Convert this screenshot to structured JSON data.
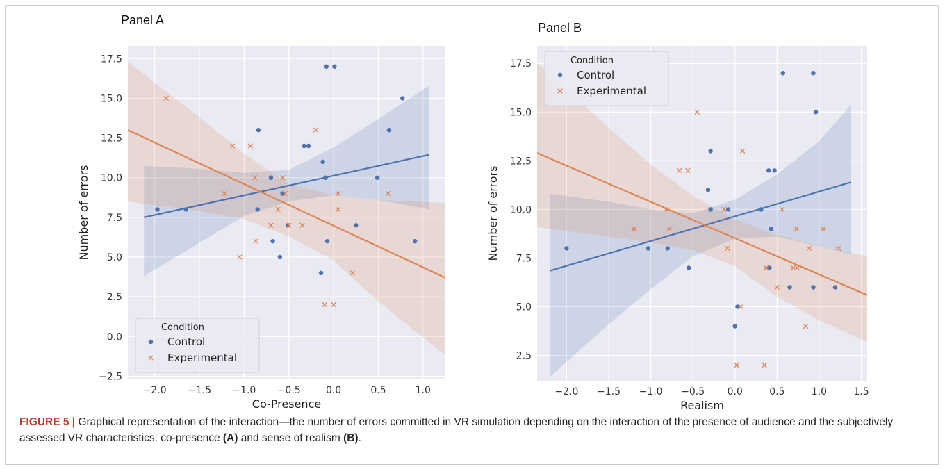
{
  "chart_data": [
    {
      "panel_title": "Panel A",
      "type": "scatter",
      "xlabel": "Co-Presence",
      "ylabel": "Number of errors",
      "xlim": [
        -2.3,
        1.25
      ],
      "ylim": [
        -2.7,
        18.3
      ],
      "xticks": [
        -2.0,
        -1.5,
        -1.0,
        -0.5,
        0.0,
        0.5,
        1.0
      ],
      "xtick_labels": [
        "−2.0",
        "−1.5",
        "−1.0",
        "−0.5",
        "0.0",
        "0.5",
        "1.0"
      ],
      "yticks": [
        -2.5,
        0.0,
        2.5,
        5.0,
        7.5,
        10.0,
        12.5,
        15.0,
        17.5
      ],
      "ytick_labels": [
        "−2.5",
        "0.0",
        "2.5",
        "5.0",
        "7.5",
        "10.0",
        "12.5",
        "15.0",
        "17.5"
      ],
      "grid": true,
      "legend_position": "bottom-left",
      "legend_title": "Condition",
      "series": [
        {
          "name": "Control",
          "marker": "circle",
          "color": "#4c72b0",
          "points": [
            [
              -1.97,
              8
            ],
            [
              -1.65,
              8
            ],
            [
              -0.84,
              13
            ],
            [
              -0.85,
              8
            ],
            [
              -0.68,
              6
            ],
            [
              -0.7,
              10
            ],
            [
              -0.57,
              9
            ],
            [
              -0.6,
              5
            ],
            [
              -0.51,
              7
            ],
            [
              -0.33,
              12
            ],
            [
              -0.28,
              12
            ],
            [
              -0.12,
              11
            ],
            [
              -0.09,
              10
            ],
            [
              -0.07,
              6
            ],
            [
              -0.08,
              17
            ],
            [
              0.01,
              17
            ],
            [
              -0.14,
              4
            ],
            [
              0.25,
              7
            ],
            [
              0.49,
              10
            ],
            [
              0.62,
              13
            ],
            [
              0.77,
              15
            ],
            [
              0.91,
              6
            ]
          ],
          "fit": {
            "x": [
              -2.12,
              1.07
            ],
            "y": [
              7.5,
              11.45
            ]
          },
          "ci": {
            "x": [
              -2.12,
              -1.5,
              -1.0,
              -0.5,
              0.0,
              0.5,
              1.07
            ],
            "upper": [
              10.75,
              10.55,
              10.3,
              10.5,
              11.9,
              13.7,
              15.8
            ],
            "lower": [
              3.8,
              5.9,
              7.6,
              8.5,
              8.9,
              8.6,
              8.0
            ]
          }
        },
        {
          "name": "Experimental",
          "marker": "x",
          "color": "#dd8452",
          "points": [
            [
              -1.87,
              15
            ],
            [
              -1.22,
              9
            ],
            [
              -1.13,
              12
            ],
            [
              -0.93,
              12
            ],
            [
              -1.05,
              5
            ],
            [
              -0.88,
              10
            ],
            [
              -0.87,
              6
            ],
            [
              -0.7,
              7
            ],
            [
              -0.62,
              8
            ],
            [
              -0.57,
              10
            ],
            [
              -0.54,
              9
            ],
            [
              -0.5,
              7
            ],
            [
              -0.35,
              7
            ],
            [
              -0.2,
              13
            ],
            [
              -0.1,
              2
            ],
            [
              0.0,
              2
            ],
            [
              0.05,
              9
            ],
            [
              0.05,
              8
            ],
            [
              0.21,
              4
            ],
            [
              0.61,
              9
            ]
          ],
          "fit": {
            "x": [
              -2.3,
              1.25
            ],
            "y": [
              13.0,
              3.7
            ]
          },
          "ci": {
            "x": [
              -2.3,
              -1.5,
              -1.0,
              -0.5,
              0.0,
              0.5,
              1.25
            ],
            "upper": [
              17.3,
              13.8,
              11.5,
              9.6,
              8.9,
              8.6,
              8.4
            ],
            "lower": [
              8.5,
              7.9,
              7.4,
              6.3,
              4.8,
              2.2,
              -1.2
            ]
          }
        }
      ]
    },
    {
      "panel_title": "Panel B",
      "type": "scatter",
      "xlabel": "Realism",
      "ylabel": "Number of errors",
      "xlim": [
        -2.35,
        1.57
      ],
      "ylim": [
        1.2,
        18.4
      ],
      "xticks": [
        -2.0,
        -1.5,
        -1.0,
        -0.5,
        0.0,
        0.5,
        1.0,
        1.5
      ],
      "xtick_labels": [
        "−2.0",
        "−1.5",
        "−1.0",
        "−0.5",
        "0.0",
        "0.5",
        "1.0",
        "1.5"
      ],
      "yticks": [
        2.5,
        5.0,
        7.5,
        10.0,
        12.5,
        15.0,
        17.5
      ],
      "ytick_labels": [
        "2.5",
        "5.0",
        "7.5",
        "10.0",
        "12.5",
        "15.0",
        "17.5"
      ],
      "grid": true,
      "legend_position": "top-left",
      "legend_title": "Condition",
      "series": [
        {
          "name": "Control",
          "marker": "circle",
          "color": "#4c72b0",
          "points": [
            [
              -2.0,
              8
            ],
            [
              -1.03,
              8
            ],
            [
              -0.8,
              8
            ],
            [
              -0.55,
              7
            ],
            [
              -0.32,
              11
            ],
            [
              -0.29,
              13
            ],
            [
              -0.29,
              10
            ],
            [
              -0.08,
              10
            ],
            [
              0.0,
              4
            ],
            [
              0.03,
              5
            ],
            [
              0.31,
              10
            ],
            [
              0.4,
              12
            ],
            [
              0.47,
              12
            ],
            [
              0.43,
              9
            ],
            [
              0.41,
              7
            ],
            [
              0.57,
              17
            ],
            [
              0.65,
              6
            ],
            [
              0.93,
              17
            ],
            [
              0.96,
              15
            ],
            [
              0.93,
              6
            ],
            [
              1.19,
              6
            ]
          ],
          "fit": {
            "x": [
              -2.2,
              1.38
            ],
            "y": [
              6.85,
              11.4
            ]
          },
          "ci": {
            "x": [
              -2.2,
              -1.5,
              -1.0,
              -0.5,
              0.0,
              0.5,
              1.0,
              1.38
            ],
            "upper": [
              10.8,
              10.4,
              10.0,
              9.8,
              10.5,
              11.8,
              13.5,
              15.4
            ],
            "lower": [
              1.4,
              4.1,
              5.9,
              7.6,
              8.5,
              8.6,
              8.1,
              7.7
            ]
          }
        },
        {
          "name": "Experimental",
          "marker": "x",
          "color": "#dd8452",
          "points": [
            [
              -1.2,
              9
            ],
            [
              -0.82,
              10
            ],
            [
              -0.78,
              9
            ],
            [
              -0.66,
              12
            ],
            [
              -0.56,
              12
            ],
            [
              -0.45,
              15
            ],
            [
              -0.13,
              10
            ],
            [
              -0.09,
              8
            ],
            [
              0.02,
              2
            ],
            [
              0.07,
              5
            ],
            [
              0.09,
              13
            ],
            [
              0.35,
              2
            ],
            [
              0.37,
              7
            ],
            [
              0.5,
              6
            ],
            [
              0.56,
              10
            ],
            [
              0.69,
              7
            ],
            [
              0.73,
              9
            ],
            [
              0.74,
              7
            ],
            [
              0.84,
              4
            ],
            [
              0.88,
              8
            ],
            [
              1.05,
              9
            ],
            [
              1.23,
              8
            ]
          ],
          "fit": {
            "x": [
              -2.35,
              1.57
            ],
            "y": [
              12.9,
              5.6
            ]
          },
          "ci": {
            "x": [
              -2.35,
              -1.5,
              -1.0,
              -0.5,
              0.0,
              0.5,
              1.0,
              1.57
            ],
            "upper": [
              17.5,
              14.2,
              12.3,
              10.7,
              9.5,
              8.7,
              8.1,
              7.6
            ],
            "lower": [
              9.1,
              8.6,
              8.3,
              7.9,
              7.1,
              5.5,
              4.3,
              3.2
            ]
          }
        }
      ]
    }
  ],
  "caption": {
    "label": "FIGURE 5 |",
    "text_1": " Graphical representation of the interaction—the number of errors committed in VR simulation depending on the interaction of the presence of audience and the subjectively assessed VR characteristics: co-presence ",
    "ref_a": "(A)",
    "text_2": " and sense of realism ",
    "ref_b": "(B)",
    "text_3": "."
  }
}
